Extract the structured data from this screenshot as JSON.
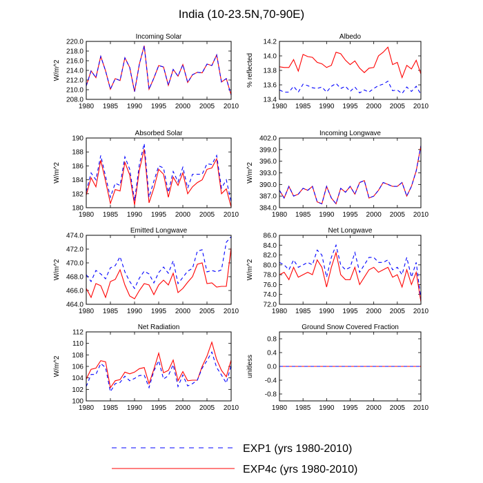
{
  "colors": {
    "exp1": "#0000ff",
    "exp4c": "#ff0000",
    "axis": "#000000"
  },
  "chart_data": {
    "type": "line",
    "title": "India (10-23.5N,70-90E)",
    "legend": [
      {
        "name": "EXP1 (yrs 1980-2010)",
        "color": "#0000ff",
        "style": "dashed"
      },
      {
        "name": "EXP4c (yrs 1980-2010)",
        "color": "#ff0000",
        "style": "solid"
      }
    ],
    "legend_position": "bottom-center",
    "x": [
      1980,
      1981,
      1982,
      1983,
      1984,
      1985,
      1986,
      1987,
      1988,
      1989,
      1990,
      1991,
      1992,
      1993,
      1994,
      1995,
      1996,
      1997,
      1998,
      1999,
      2000,
      2001,
      2002,
      2003,
      2004,
      2005,
      2006,
      2007,
      2008,
      2009,
      2010
    ],
    "xticks": [
      "1980",
      "1985",
      "1990",
      "1995",
      "2000",
      "2005",
      "2010"
    ],
    "xlim": [
      1980,
      2010
    ],
    "panels": [
      {
        "title": "Incoming Solar",
        "ylabel": "W/m^2",
        "ylim": [
          208.0,
          220.0
        ],
        "yticks": [
          "208.0",
          "210.0",
          "212.0",
          "214.0",
          "216.0",
          "218.0",
          "220.0"
        ],
        "series": [
          {
            "name": "EXP1",
            "values": [
              210.8,
              213.9,
              212.5,
              216.9,
              213.9,
              210.1,
              212.3,
              211.9,
              216.6,
              214.6,
              209.6,
              215.3,
              219.1,
              210.1,
              212.4,
              215.0,
              214.7,
              210.9,
              214.2,
              212.8,
              215.2,
              211.5,
              213.1,
              213.6,
              213.5,
              215.3,
              215.0,
              217.2,
              211.6,
              212.3,
              208.9
            ]
          },
          {
            "name": "EXP4c",
            "values": [
              210.8,
              213.9,
              212.5,
              216.9,
              213.9,
              210.1,
              212.3,
              211.9,
              216.6,
              214.6,
              209.6,
              215.3,
              219.1,
              210.1,
              212.4,
              215.0,
              214.7,
              210.9,
              214.2,
              212.8,
              215.2,
              211.5,
              213.1,
              213.6,
              213.5,
              215.3,
              215.0,
              217.2,
              211.6,
              212.3,
              208.9
            ]
          }
        ]
      },
      {
        "title": "Albedo",
        "ylabel": "% reflected",
        "ylim": [
          13.4,
          14.2
        ],
        "yticks": [
          "13.4",
          "13.6",
          "13.8",
          "14.0",
          "14.2"
        ],
        "series": [
          {
            "name": "EXP1",
            "values": [
              13.53,
              13.5,
              13.5,
              13.58,
              13.5,
              13.61,
              13.59,
              13.56,
              13.55,
              13.57,
              13.5,
              13.58,
              13.62,
              13.55,
              13.58,
              13.51,
              13.57,
              13.49,
              13.53,
              13.5,
              13.55,
              13.59,
              13.61,
              13.65,
              13.52,
              13.53,
              13.48,
              13.57,
              13.51,
              13.58,
              13.47
            ]
          },
          {
            "name": "EXP4c",
            "values": [
              13.85,
              13.84,
              13.84,
              13.95,
              13.79,
              14.02,
              13.99,
              13.98,
              13.91,
              13.89,
              13.84,
              13.87,
              14.05,
              14.03,
              13.94,
              13.88,
              13.93,
              13.83,
              13.77,
              13.83,
              13.84,
              14.0,
              14.05,
              14.12,
              13.88,
              13.91,
              13.7,
              13.87,
              13.82,
              13.94,
              13.75
            ]
          }
        ]
      },
      {
        "title": "Absorbed Solar",
        "ylabel": "W/m^2",
        "ylim": [
          180,
          190
        ],
        "yticks": [
          "180",
          "182",
          "184",
          "186",
          "188",
          "190"
        ],
        "series": [
          {
            "name": "EXP1",
            "values": [
              182.3,
              185.0,
              184.0,
              187.5,
              184.5,
              181.5,
              183.5,
              183.2,
              187.3,
              185.5,
              181.0,
              186.2,
              189.2,
              181.5,
              183.8,
              186.0,
              185.7,
              182.2,
              185.2,
              183.7,
              185.8,
              182.8,
              184.8,
              184.8,
              184.8,
              186.3,
              186.2,
              187.5,
              182.8,
              184.0,
              180.8
            ]
          },
          {
            "name": "EXP4c",
            "values": [
              181.8,
              184.3,
              183.0,
              186.8,
              183.8,
              180.6,
              182.6,
              182.4,
              186.5,
              184.7,
              180.4,
              185.4,
              188.4,
              180.7,
              182.8,
              185.5,
              184.8,
              181.5,
              184.4,
              183.2,
              185.0,
              182.0,
              183.0,
              183.6,
              184.0,
              185.5,
              185.7,
              187.0,
              182.0,
              182.7,
              180.1
            ]
          }
        ]
      },
      {
        "title": "Incoming Longwave",
        "ylabel": "W/m^2",
        "ylim": [
          384.0,
          402.0
        ],
        "yticks": [
          "384.0",
          "387.0",
          "390.0",
          "393.0",
          "396.0",
          "399.0",
          "402.0"
        ],
        "series": [
          {
            "name": "EXP1",
            "values": [
              388.5,
              386.5,
              389.5,
              387.0,
              387.5,
              389.0,
              388.5,
              389.5,
              385.5,
              385.0,
              389.5,
              386.5,
              385.0,
              389.0,
              388.0,
              389.5,
              387.5,
              390.5,
              391.0,
              386.5,
              387.0,
              388.5,
              390.5,
              390.0,
              389.5,
              389.5,
              390.5,
              387.0,
              389.5,
              393.5,
              400.0
            ]
          },
          {
            "name": "EXP4c",
            "values": [
              388.5,
              386.5,
              389.5,
              387.0,
              387.5,
              389.0,
              388.5,
              389.5,
              385.5,
              385.0,
              389.5,
              386.5,
              385.0,
              389.0,
              388.0,
              389.5,
              387.5,
              390.5,
              391.0,
              386.5,
              387.0,
              388.5,
              390.5,
              390.0,
              389.5,
              389.5,
              390.5,
              387.0,
              389.5,
              393.5,
              400.0
            ]
          }
        ]
      },
      {
        "title": "Emitted Longwave",
        "ylabel": "W/m^2",
        "ylim": [
          464.0,
          474.0
        ],
        "yticks": [
          "464.0",
          "466.0",
          "468.0",
          "470.0",
          "472.0",
          "474.0"
        ],
        "series": [
          {
            "name": "EXP1",
            "values": [
              468.3,
              467.3,
              468.9,
              468.4,
              467.7,
              469.3,
              469.6,
              470.9,
              468.7,
              467.3,
              466.3,
              467.8,
              468.8,
              468.4,
              467.1,
              468.6,
              469.4,
              468.5,
              470.3,
              467.0,
              467.9,
              468.8,
              469.2,
              471.7,
              471.9,
              468.7,
              468.9,
              468.7,
              469.0,
              473.0,
              473.8
            ]
          },
          {
            "name": "EXP4c",
            "values": [
              466.3,
              465.0,
              467.0,
              466.7,
              465.0,
              467.3,
              467.6,
              469.0,
              466.8,
              465.2,
              464.8,
              466.0,
              467.0,
              466.8,
              465.4,
              466.8,
              467.5,
              466.8,
              468.5,
              465.7,
              466.3,
              467.2,
              468.0,
              469.8,
              470.0,
              467.0,
              467.1,
              466.5,
              466.6,
              466.6,
              472.2
            ]
          }
        ]
      },
      {
        "title": "Net Longwave",
        "ylabel": "W/m^2",
        "ylim": [
          72.0,
          86.0
        ],
        "yticks": [
          "72.0",
          "74.0",
          "76.0",
          "78.0",
          "80.0",
          "82.0",
          "84.0",
          "86.0"
        ],
        "series": [
          {
            "name": "EXP1",
            "values": [
              80.5,
              80.0,
              79.0,
              81.0,
              79.5,
              80.0,
              80.5,
              80.0,
              83.0,
              82.0,
              77.5,
              81.5,
              84.0,
              80.0,
              79.0,
              79.5,
              82.5,
              78.5,
              80.0,
              81.5,
              81.5,
              80.5,
              80.5,
              81.0,
              79.0,
              79.5,
              78.0,
              81.5,
              77.5,
              80.5,
              73.0
            ]
          },
          {
            "name": "EXP4c",
            "values": [
              78.0,
              78.5,
              77.0,
              79.5,
              77.5,
              78.0,
              78.5,
              78.0,
              81.0,
              79.5,
              75.5,
              79.5,
              82.5,
              78.0,
              77.0,
              77.0,
              79.5,
              76.0,
              77.5,
              79.0,
              79.5,
              78.5,
              79.0,
              79.5,
              77.5,
              78.0,
              75.5,
              79.0,
              76.0,
              78.5,
              72.5
            ]
          }
        ]
      },
      {
        "title": "Net Radiation",
        "ylabel": "W/m^2",
        "ylim": [
          100,
          112
        ],
        "yticks": [
          "100",
          "102",
          "104",
          "106",
          "108",
          "110",
          "112"
        ],
        "series": [
          {
            "name": "EXP1",
            "values": [
              102.5,
              104.6,
              104.6,
              106.5,
              105.8,
              101.6,
              103.0,
              103.2,
              104.3,
              103.5,
              103.9,
              104.4,
              104.5,
              102.3,
              105.2,
              107.0,
              103.8,
              104.4,
              106.3,
              102.5,
              104.5,
              102.6,
              103.0,
              103.6,
              105.7,
              107.0,
              108.5,
              105.8,
              104.5,
              103.1,
              106.2
            ]
          },
          {
            "name": "EXP4c",
            "values": [
              103.8,
              105.5,
              105.7,
              107.0,
              106.8,
              102.3,
              103.5,
              103.7,
              105.0,
              104.7,
              105.0,
              105.6,
              105.8,
              103.0,
              105.5,
              108.3,
              104.9,
              105.3,
              107.1,
              103.5,
              105.1,
              103.5,
              103.6,
              103.6,
              106.0,
              107.8,
              110.2,
              107.2,
              105.3,
              104.2,
              107.1
            ]
          }
        ]
      },
      {
        "title": "Ground Snow Covered Fraction",
        "ylabel": "unitless",
        "ylim": [
          -1.0,
          1.0
        ],
        "yticks": [
          "-0.8",
          "-0.4",
          "0.0",
          "0.4",
          "0.8"
        ],
        "yticks_at": [
          -0.8,
          -0.4,
          0.0,
          0.4,
          0.8
        ],
        "series": [
          {
            "name": "EXP1",
            "values": [
              0,
              0,
              0,
              0,
              0,
              0,
              0,
              0,
              0,
              0,
              0,
              0,
              0,
              0,
              0,
              0,
              0,
              0,
              0,
              0,
              0,
              0,
              0,
              0,
              0,
              0,
              0,
              0,
              0,
              0,
              0
            ]
          },
          {
            "name": "EXP4c",
            "values": [
              0,
              0,
              0,
              0,
              0,
              0,
              0,
              0,
              0,
              0,
              0,
              0,
              0,
              0,
              0,
              0,
              0,
              0,
              0,
              0,
              0,
              0,
              0,
              0,
              0,
              0,
              0,
              0,
              0,
              0,
              0
            ]
          }
        ]
      }
    ]
  }
}
